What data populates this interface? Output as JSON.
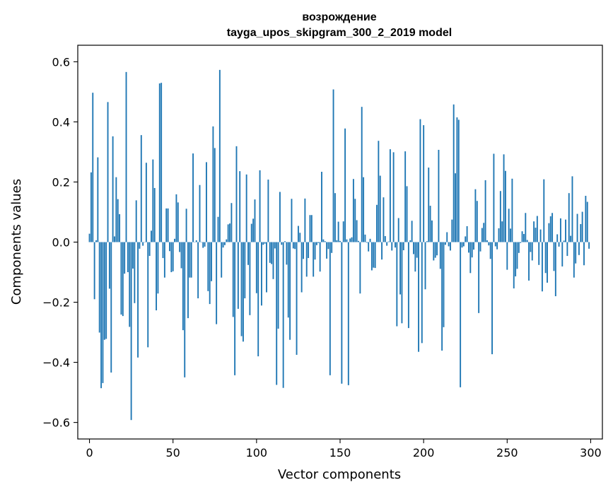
{
  "chart_data": {
    "type": "bar",
    "title": "возрождение",
    "subtitle": "tayga_upos_skipgram_300_2_2019 model",
    "xlabel": "Vector components",
    "ylabel": "Components values",
    "xlim": [
      -7,
      307
    ],
    "ylim": [
      -0.655,
      0.655
    ],
    "xticks": [
      0,
      50,
      100,
      150,
      200,
      250,
      300
    ],
    "yticks": [
      -0.6,
      -0.4,
      -0.2,
      0.0,
      0.2,
      0.4,
      0.6
    ],
    "xtick_labels": [
      "0",
      "50",
      "100",
      "150",
      "200",
      "250",
      "300"
    ],
    "ytick_labels": [
      "−0.6",
      "−0.4",
      "−0.2",
      "0.0",
      "0.2",
      "0.4",
      "0.6"
    ],
    "bar_color": "#1f77b4",
    "values": [
      0.028,
      0.232,
      0.497,
      -0.19,
      0.006,
      0.282,
      -0.301,
      -0.486,
      -0.469,
      -0.325,
      -0.322,
      0.466,
      -0.155,
      -0.434,
      0.352,
      0.019,
      0.216,
      0.143,
      0.093,
      -0.241,
      -0.246,
      -0.105,
      0.566,
      -0.1,
      -0.282,
      -0.592,
      -0.088,
      -0.203,
      0.139,
      -0.384,
      -0.022,
      0.356,
      -0.012,
      -0.001,
      0.264,
      -0.35,
      -0.046,
      0.038,
      0.275,
      0.18,
      -0.227,
      -0.171,
      0.528,
      0.53,
      -0.053,
      -0.118,
      0.112,
      0.112,
      -0.03,
      -0.1,
      -0.097,
      0.011,
      0.159,
      0.132,
      -0.033,
      -0.087,
      -0.293,
      -0.45,
      0.111,
      -0.253,
      -0.118,
      -0.118,
      0.295,
      0.001,
      0.006,
      -0.187,
      0.19,
      -0.001,
      -0.019,
      -0.015,
      0.266,
      -0.163,
      -0.206,
      -0.13,
      0.385,
      0.313,
      -0.273,
      0.084,
      0.573,
      -0.118,
      -0.018,
      -0.01,
      0.009,
      0.059,
      0.062,
      0.13,
      -0.249,
      -0.443,
      0.319,
      -0.222,
      0.236,
      -0.313,
      -0.331,
      -0.187,
      0.225,
      -0.076,
      -0.243,
      0.061,
      0.078,
      0.142,
      -0.17,
      -0.38,
      0.239,
      -0.211,
      -0.009,
      -0.005,
      -0.167,
      0.208,
      -0.069,
      -0.073,
      -0.123,
      -0.021,
      -0.475,
      -0.288,
      0.167,
      -0.009,
      -0.485,
      0.003,
      -0.075,
      -0.251,
      -0.325,
      0.144,
      -0.021,
      -0.023,
      -0.375,
      0.054,
      0.031,
      -0.167,
      -0.056,
      0.145,
      -0.115,
      -0.053,
      0.09,
      0.09,
      -0.115,
      -0.058,
      -0.01,
      -0.003,
      -0.098,
      0.234,
      0.009,
      0.003,
      -0.055,
      -0.023,
      -0.443,
      -0.036,
      0.508,
      0.163,
      0.006,
      0.068,
      0.004,
      -0.471,
      0.069,
      0.378,
      0.009,
      -0.476,
      0.012,
      0.016,
      0.21,
      0.144,
      0.073,
      0.004,
      -0.171,
      0.45,
      0.216,
      0.025,
      -0.002,
      -0.031,
      0.011,
      -0.094,
      -0.085,
      -0.086,
      0.124,
      0.337,
      0.221,
      -0.058,
      0.149,
      0.02,
      -0.012,
      0.002,
      0.309,
      -0.028,
      0.299,
      -0.018,
      -0.28,
      0.08,
      -0.174,
      -0.27,
      -0.027,
      0.302,
      0.186,
      -0.286,
      0.006,
      0.071,
      -0.04,
      -0.098,
      -0.052,
      -0.365,
      0.409,
      -0.336,
      0.389,
      -0.157,
      0.003,
      0.248,
      0.121,
      0.072,
      -0.061,
      -0.052,
      -0.044,
      0.307,
      -0.089,
      -0.361,
      -0.283,
      -0.009,
      0.033,
      -0.014,
      -0.028,
      0.075,
      0.458,
      0.229,
      0.415,
      0.407,
      -0.483,
      -0.018,
      -0.014,
      0.019,
      0.053,
      -0.035,
      -0.103,
      -0.051,
      -0.025,
      0.176,
      0.137,
      -0.236,
      -0.031,
      0.047,
      0.064,
      0.206,
      0.006,
      -0.011,
      -0.056,
      -0.373,
      0.294,
      -0.014,
      -0.024,
      0.046,
      0.17,
      0.069,
      0.292,
      0.237,
      -0.092,
      0.111,
      0.045,
      0.211,
      -0.154,
      -0.114,
      -0.089,
      -0.036,
      -0.003,
      0.036,
      0.027,
      0.097,
      0.007,
      -0.128,
      -0.033,
      -0.061,
      0.069,
      0.048,
      0.087,
      -0.076,
      0.042,
      -0.164,
      0.209,
      -0.103,
      -0.135,
      0.063,
      0.086,
      0.097,
      -0.096,
      -0.18,
      0.026,
      -0.015,
      0.079,
      -0.081,
      0.005,
      0.075,
      -0.046,
      0.163,
      0.021,
      0.219,
      -0.118,
      -0.071,
      0.094,
      -0.043,
      0.06,
      0.101,
      -0.077,
      0.154,
      0.134,
      -0.022
    ]
  }
}
